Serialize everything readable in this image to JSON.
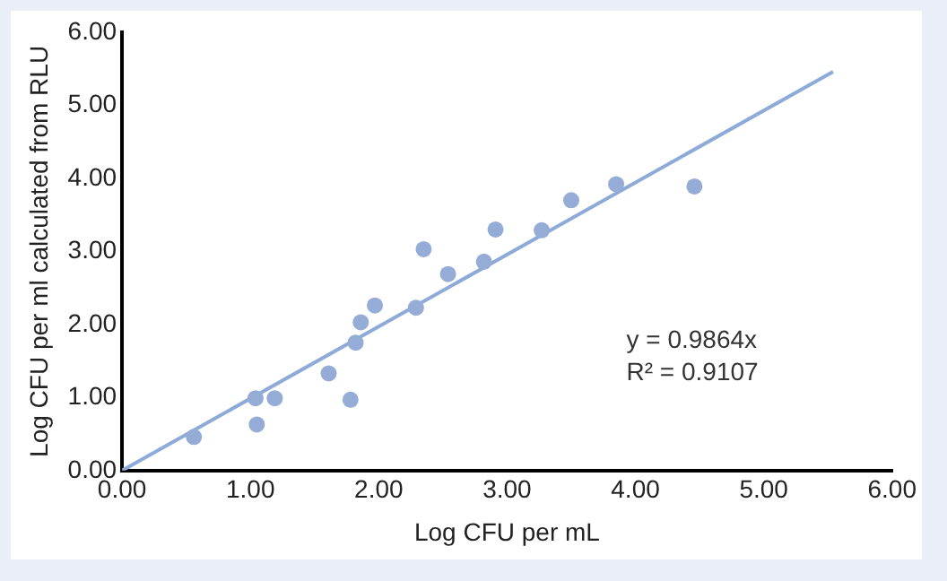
{
  "chart_data": {
    "type": "scatter",
    "xlabel": "Log CFU per mL",
    "ylabel": "Log CFU per ml calculated from RLU",
    "xlim": [
      0,
      6
    ],
    "ylim": [
      0,
      6
    ],
    "xticks": [
      {
        "value": 0,
        "label": "0.00"
      },
      {
        "value": 1,
        "label": "1.00"
      },
      {
        "value": 2,
        "label": "2.00"
      },
      {
        "value": 3,
        "label": "3.00"
      },
      {
        "value": 4,
        "label": "4.00"
      },
      {
        "value": 5,
        "label": "5.00"
      },
      {
        "value": 6,
        "label": "6.00"
      }
    ],
    "yticks": [
      {
        "value": 0,
        "label": "0.00"
      },
      {
        "value": 1,
        "label": "1.00"
      },
      {
        "value": 2,
        "label": "2.00"
      },
      {
        "value": 3,
        "label": "3.00"
      },
      {
        "value": 4,
        "label": "4.00"
      },
      {
        "value": 5,
        "label": "5.00"
      },
      {
        "value": 6,
        "label": "6.00"
      }
    ],
    "grid": false,
    "legend": false,
    "marker": "circle",
    "series": [
      {
        "color": "#94acd6",
        "x": [
          0.56,
          1.04,
          1.05,
          1.19,
          1.61,
          1.78,
          1.82,
          1.86,
          1.97,
          2.29,
          2.35,
          2.54,
          2.82,
          2.91,
          3.27,
          3.5,
          3.85,
          4.46
        ],
        "values": [
          0.46,
          0.99,
          0.63,
          0.99,
          1.33,
          0.97,
          1.75,
          2.03,
          2.26,
          2.23,
          3.03,
          2.69,
          2.86,
          3.3,
          3.29,
          3.7,
          3.92,
          3.89
        ]
      },
      {
        "type": "line",
        "color": "#8eaad8",
        "marker": "none",
        "x": [
          0,
          5.54
        ],
        "values": [
          0,
          5.46
        ]
      }
    ],
    "annotations": [
      "y = 0.9864x",
      "R² = 0.9107"
    ]
  }
}
